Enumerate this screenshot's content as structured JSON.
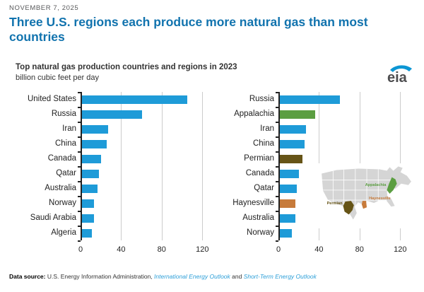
{
  "header": {
    "date": "NOVEMBER 7, 2025",
    "title": "Three U.S. regions each produce more natural gas than most countries"
  },
  "logo": {
    "text": "eia"
  },
  "chart_data": [
    {
      "type": "bar",
      "orientation": "horizontal",
      "title": "Top natural gas production countries and regions in 2023",
      "subtitle": "billion cubic feet per day",
      "panel": "top producing countries",
      "categories": [
        "United States",
        "Russia",
        "Iran",
        "China",
        "Canada",
        "Qatar",
        "Australia",
        "Norway",
        "Saudi Arabia",
        "Algeria"
      ],
      "values": [
        104,
        59,
        26,
        24,
        19,
        17,
        15,
        12,
        12,
        10
      ],
      "bar_color": "#1e9bd8",
      "xlim": [
        0,
        124
      ],
      "xticks": [
        0,
        40,
        80,
        120
      ],
      "grid": "vertical"
    },
    {
      "type": "bar",
      "orientation": "horizontal",
      "panel": "countries and U.S. regions",
      "categories": [
        "Russia",
        "Appalachia",
        "Iran",
        "China",
        "Permian",
        "Canada",
        "Qatar",
        "Haynesville",
        "Australia",
        "Norway"
      ],
      "values": [
        59,
        35,
        26,
        24,
        22,
        19,
        17,
        15,
        15,
        12
      ],
      "bar_color": "#1e9bd8",
      "colors": [
        "#1e9bd8",
        "#5b9e41",
        "#1e9bd8",
        "#1e9bd8",
        "#665417",
        "#1e9bd8",
        "#1e9bd8",
        "#c77b3b",
        "#1e9bd8",
        "#1e9bd8"
      ],
      "xlim": [
        0,
        124
      ],
      "xticks": [
        0,
        40,
        80,
        120
      ],
      "grid": "vertical"
    }
  ],
  "map": {
    "description": "U.S. map inset highlighting three natural gas producing regions",
    "regions": [
      {
        "label": "Appalachia",
        "color": "#5b9e41"
      },
      {
        "label": "Permian",
        "color": "#665417"
      },
      {
        "label": "Haynesville",
        "color": "#c77b3b"
      }
    ]
  },
  "footer": {
    "label": "Data source:",
    "source": " U.S. Energy Information Administration, ",
    "link_ieo": "International Energy Outlook",
    "conjunction": " and ",
    "link_steo": "Short-Term Energy Outlook"
  },
  "colors": {
    "bar_blue": "#1e9bd8",
    "appalachia_green": "#5b9e41",
    "permian_olive": "#665417",
    "haynesville_orange": "#c77b3b",
    "headline_blue": "#1173ae",
    "link_blue": "#2d9fd8",
    "map_gray": "#d5d5d5"
  }
}
